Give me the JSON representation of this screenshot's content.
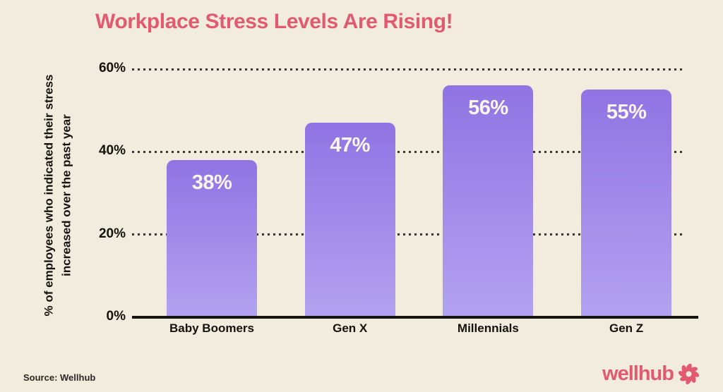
{
  "title": "Workplace Stress Levels Are Rising!",
  "source_note": "Source: Wellhub",
  "logo": {
    "text": "wellhub",
    "icon": "pinwheel-icon"
  },
  "colors": {
    "background": "#F2ECDE",
    "accent_pink": "#E15A6F",
    "bar_gradient_top": "#8F74E3",
    "bar_gradient_bottom": "#B3A2F0",
    "bar_value_text": "#FAF6EE",
    "axis_text": "#14120D",
    "gridline": "#3B382F"
  },
  "chart_data": {
    "type": "bar",
    "title": "Workplace Stress Levels Are Rising!",
    "categories": [
      "Baby Boomers",
      "Gen X",
      "Millennials",
      "Gen Z"
    ],
    "values": [
      38,
      47,
      56,
      55
    ],
    "value_labels": [
      "38%",
      "47%",
      "56%",
      "55%"
    ],
    "xlabel": "",
    "ylabel_line1": "% of employees who indicated their stress",
    "ylabel_line2": "increased over the past year",
    "ylim": [
      0,
      60
    ],
    "yticks": [
      0,
      20,
      40,
      60
    ],
    "ytick_labels": [
      "0%",
      "20%",
      "40%",
      "60%"
    ],
    "grid": "horizontal-dotted",
    "legend": "none"
  }
}
